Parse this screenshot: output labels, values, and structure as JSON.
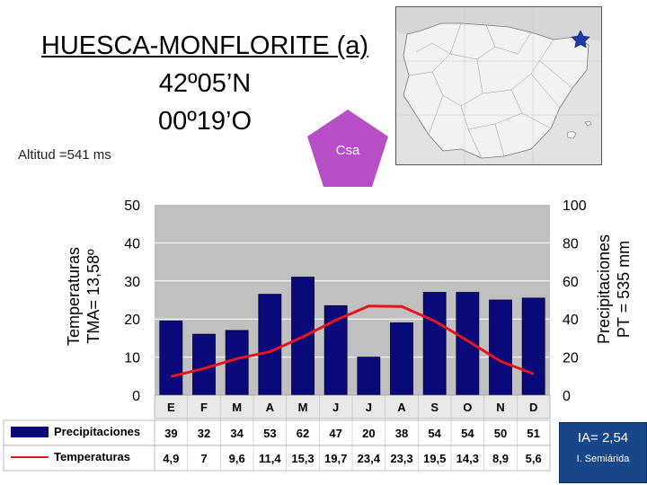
{
  "header": {
    "station": "HUESCA-MONFLORITE (a)",
    "latitude": "42º05’N",
    "longitude": "00º19’O",
    "altitude": "Altitud =541 ms"
  },
  "koppen": {
    "label": "Csa",
    "color": "#b84fc9"
  },
  "index": {
    "value": "IA= 2,54",
    "class": "I. Semiárida",
    "color": "#17468a"
  },
  "chart_data": {
    "type": "bar",
    "categories": [
      "E",
      "F",
      "M",
      "A",
      "M",
      "J",
      "J",
      "A",
      "S",
      "O",
      "N",
      "D"
    ],
    "series": [
      {
        "name": "Precipitaciones",
        "type": "bar",
        "axis": "right",
        "color": "#0a0a7a",
        "values": [
          39,
          32,
          34,
          53,
          62,
          47,
          20,
          38,
          54,
          54,
          50,
          51
        ],
        "labels": [
          "39",
          "32",
          "34",
          "53",
          "62",
          "47",
          "20",
          "38",
          "54",
          "54",
          "50",
          "51"
        ]
      },
      {
        "name": "Temperaturas",
        "type": "line",
        "axis": "left",
        "color": "#e8141c",
        "values": [
          4.9,
          7,
          9.6,
          11.4,
          15.3,
          19.7,
          23.4,
          23.3,
          19.5,
          14.3,
          8.9,
          5.6
        ],
        "labels": [
          "4,9",
          "7",
          "9,6",
          "11,4",
          "15,3",
          "19,7",
          "23,4",
          "23,3",
          "19,5",
          "14,3",
          "8,9",
          "5,6"
        ]
      }
    ],
    "ylabel_left": [
      "Temperaturas",
      "TMA= 13,58º"
    ],
    "ylabel_right": [
      "Precipitaciones",
      "PT = 535 mm"
    ],
    "ylim_left": [
      0,
      50
    ],
    "ylim_right": [
      0,
      100
    ],
    "yticks_left": [
      "0",
      "10",
      "20",
      "30",
      "40",
      "50"
    ],
    "yticks_right": [
      "0",
      "20",
      "40",
      "60",
      "80",
      "100"
    ],
    "plot_background": "#c0c0c0",
    "grid": true
  }
}
